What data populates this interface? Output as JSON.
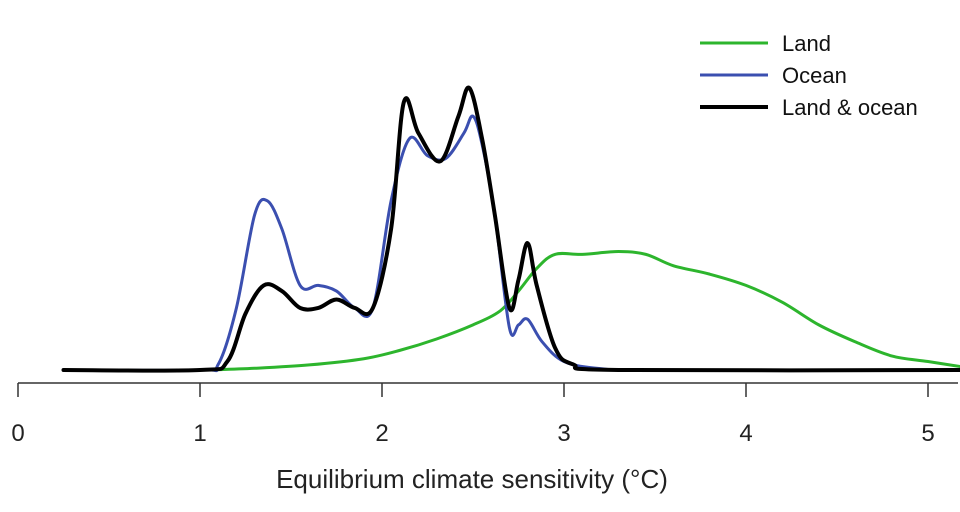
{
  "chart_data": {
    "type": "line",
    "title": "",
    "xlabel": "Equilibrium climate sensitivity (°C)",
    "ylabel": "",
    "xlim": [
      0,
      5.2
    ],
    "x_ticks": [
      "0",
      "1",
      "2",
      "3",
      "4",
      "5"
    ],
    "ylim": [
      0,
      1.0
    ],
    "grid": false,
    "legend_position": "top-right",
    "series": [
      {
        "name": "Land",
        "color": "#2db52d",
        "points": [
          [
            1.05,
            0.0
          ],
          [
            1.3,
            0.006
          ],
          [
            1.6,
            0.018
          ],
          [
            1.9,
            0.04
          ],
          [
            2.1,
            0.07
          ],
          [
            2.3,
            0.11
          ],
          [
            2.5,
            0.16
          ],
          [
            2.65,
            0.21
          ],
          [
            2.75,
            0.28
          ],
          [
            2.85,
            0.36
          ],
          [
            2.95,
            0.41
          ],
          [
            3.1,
            0.41
          ],
          [
            3.3,
            0.42
          ],
          [
            3.45,
            0.41
          ],
          [
            3.6,
            0.37
          ],
          [
            3.8,
            0.34
          ],
          [
            4.0,
            0.3
          ],
          [
            4.2,
            0.24
          ],
          [
            4.4,
            0.16
          ],
          [
            4.6,
            0.1
          ],
          [
            4.8,
            0.05
          ],
          [
            5.0,
            0.03
          ],
          [
            5.2,
            0.01
          ]
        ]
      },
      {
        "name": "Ocean",
        "color": "#3b4fb0",
        "points": [
          [
            0.25,
            0.0
          ],
          [
            1.0,
            0.0
          ],
          [
            1.1,
            0.02
          ],
          [
            1.2,
            0.22
          ],
          [
            1.3,
            0.55
          ],
          [
            1.37,
            0.6
          ],
          [
            1.45,
            0.5
          ],
          [
            1.55,
            0.3
          ],
          [
            1.65,
            0.3
          ],
          [
            1.75,
            0.28
          ],
          [
            1.85,
            0.22
          ],
          [
            1.95,
            0.22
          ],
          [
            2.05,
            0.6
          ],
          [
            2.15,
            0.82
          ],
          [
            2.25,
            0.76
          ],
          [
            2.35,
            0.75
          ],
          [
            2.45,
            0.84
          ],
          [
            2.5,
            0.9
          ],
          [
            2.55,
            0.8
          ],
          [
            2.62,
            0.55
          ],
          [
            2.7,
            0.15
          ],
          [
            2.75,
            0.16
          ],
          [
            2.8,
            0.18
          ],
          [
            2.88,
            0.1
          ],
          [
            3.0,
            0.03
          ],
          [
            3.2,
            0.005
          ],
          [
            3.5,
            0.0
          ],
          [
            5.2,
            0.0
          ]
        ]
      },
      {
        "name": "Land & ocean",
        "color": "#000000",
        "points": [
          [
            0.25,
            0.0
          ],
          [
            1.0,
            0.0
          ],
          [
            1.15,
            0.03
          ],
          [
            1.25,
            0.2
          ],
          [
            1.35,
            0.3
          ],
          [
            1.45,
            0.28
          ],
          [
            1.55,
            0.22
          ],
          [
            1.65,
            0.22
          ],
          [
            1.75,
            0.25
          ],
          [
            1.85,
            0.22
          ],
          [
            1.95,
            0.22
          ],
          [
            2.05,
            0.5
          ],
          [
            2.12,
            0.95
          ],
          [
            2.2,
            0.84
          ],
          [
            2.32,
            0.74
          ],
          [
            2.42,
            0.9
          ],
          [
            2.48,
            1.0
          ],
          [
            2.55,
            0.82
          ],
          [
            2.62,
            0.55
          ],
          [
            2.7,
            0.22
          ],
          [
            2.75,
            0.32
          ],
          [
            2.8,
            0.45
          ],
          [
            2.85,
            0.3
          ],
          [
            2.95,
            0.08
          ],
          [
            3.05,
            0.02
          ],
          [
            3.3,
            0.0
          ],
          [
            5.2,
            0.0
          ]
        ]
      }
    ]
  }
}
